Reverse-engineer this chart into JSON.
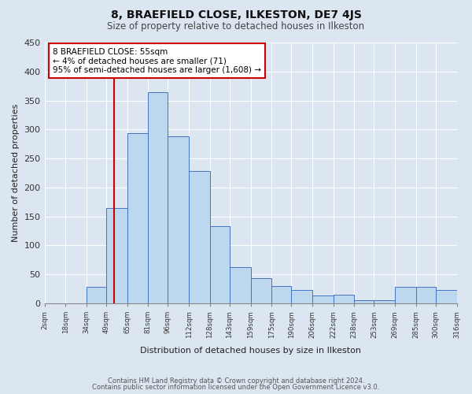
{
  "title": "8, BRAEFIELD CLOSE, ILKESTON, DE7 4JS",
  "subtitle": "Size of property relative to detached houses in Ilkeston",
  "xlabel": "Distribution of detached houses by size in Ilkeston",
  "ylabel": "Number of detached properties",
  "bar_color": "#bdd7ee",
  "bar_edge_color": "#4472c4",
  "background_color": "#dce6f1",
  "grid_color": "#ffffff",
  "annotation_box_color": "#ffffff",
  "annotation_border_color": "#cc0000",
  "vline_color": "#cc0000",
  "vline_x": 55,
  "annotation_line1": "8 BRAEFIELD CLOSE: 55sqm",
  "annotation_line2": "← 4% of detached houses are smaller (71)",
  "annotation_line3": "95% of semi-detached houses are larger (1,608) →",
  "footer_line1": "Contains HM Land Registry data © Crown copyright and database right 2024.",
  "footer_line2": "Contains public sector information licensed under the Open Government Licence v3.0.",
  "bin_edges": [
    2,
    18,
    34,
    49,
    65,
    81,
    96,
    112,
    128,
    143,
    159,
    175,
    190,
    206,
    222,
    238,
    253,
    269,
    285,
    300,
    316
  ],
  "bar_heights": [
    0,
    0,
    28,
    165,
    293,
    365,
    288,
    228,
    133,
    62,
    43,
    30,
    23,
    14,
    15,
    6,
    5,
    28,
    28,
    23
  ],
  "tick_labels": [
    "2sqm",
    "18sqm",
    "34sqm",
    "49sqm",
    "65sqm",
    "81sqm",
    "96sqm",
    "112sqm",
    "128sqm",
    "143sqm",
    "159sqm",
    "175sqm",
    "190sqm",
    "206sqm",
    "222sqm",
    "238sqm",
    "253sqm",
    "269sqm",
    "285sqm",
    "300sqm",
    "316sqm"
  ],
  "ylim": [
    0,
    450
  ],
  "yticks": [
    0,
    50,
    100,
    150,
    200,
    250,
    300,
    350,
    400,
    450
  ]
}
